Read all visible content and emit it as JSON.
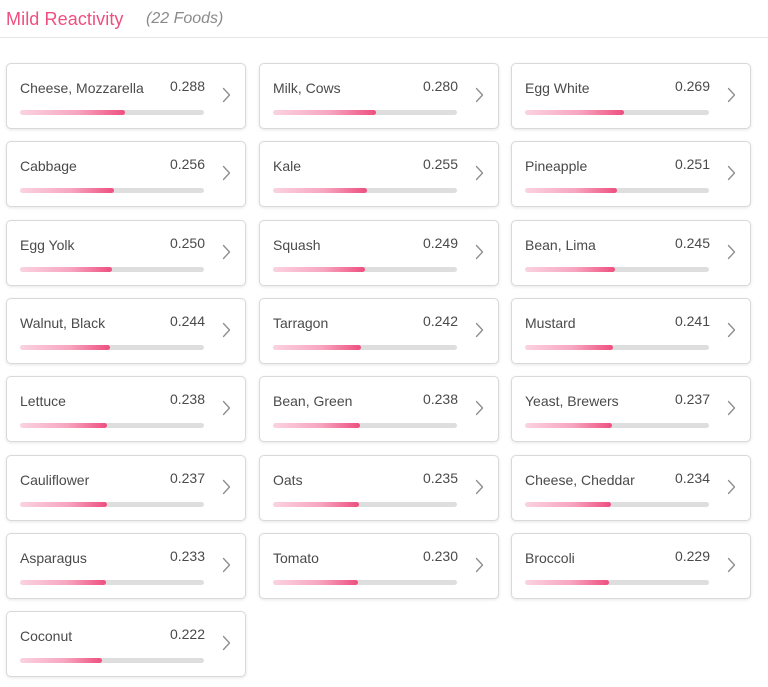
{
  "header": {
    "title": "Mild Reactivity",
    "count": "(22 Foods)"
  },
  "colors": {
    "accent": "#ee4f7f",
    "bar_track": "#dedede",
    "bar_gradient_start": "#fbd3e0"
  },
  "icons": {
    "card_arrow": "chevron-right-icon"
  },
  "foods": [
    {
      "name": "Cheese, Mozzarella",
      "score": "0.288",
      "fill": 0.57
    },
    {
      "name": "Milk, Cows",
      "score": "0.280",
      "fill": 0.56
    },
    {
      "name": "Egg White",
      "score": "0.269",
      "fill": 0.54
    },
    {
      "name": "Cabbage",
      "score": "0.256",
      "fill": 0.51
    },
    {
      "name": "Kale",
      "score": "0.255",
      "fill": 0.51
    },
    {
      "name": "Pineapple",
      "score": "0.251",
      "fill": 0.5
    },
    {
      "name": "Egg Yolk",
      "score": "0.250",
      "fill": 0.5
    },
    {
      "name": "Squash",
      "score": "0.249",
      "fill": 0.5
    },
    {
      "name": "Bean, Lima",
      "score": "0.245",
      "fill": 0.49
    },
    {
      "name": "Walnut, Black",
      "score": "0.244",
      "fill": 0.49
    },
    {
      "name": "Tarragon",
      "score": "0.242",
      "fill": 0.48
    },
    {
      "name": "Mustard",
      "score": "0.241",
      "fill": 0.48
    },
    {
      "name": "Lettuce",
      "score": "0.238",
      "fill": 0.475
    },
    {
      "name": "Bean, Green",
      "score": "0.238",
      "fill": 0.475
    },
    {
      "name": "Yeast, Brewers",
      "score": "0.237",
      "fill": 0.474
    },
    {
      "name": "Cauliflower",
      "score": "0.237",
      "fill": 0.474
    },
    {
      "name": "Oats",
      "score": "0.235",
      "fill": 0.47
    },
    {
      "name": "Cheese, Cheddar",
      "score": "0.234",
      "fill": 0.468
    },
    {
      "name": "Asparagus",
      "score": "0.233",
      "fill": 0.466
    },
    {
      "name": "Tomato",
      "score": "0.230",
      "fill": 0.46
    },
    {
      "name": "Broccoli",
      "score": "0.229",
      "fill": 0.458
    },
    {
      "name": "Coconut",
      "score": "0.222",
      "fill": 0.444
    }
  ]
}
